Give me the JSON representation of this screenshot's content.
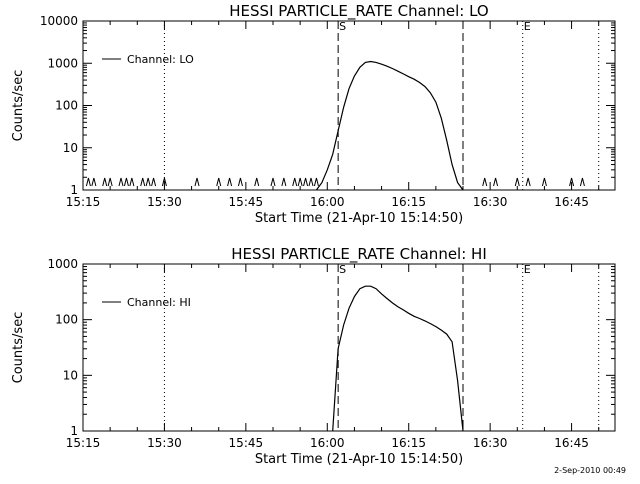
{
  "footer": {
    "timestamp": "2-Sep-2010 00:49"
  },
  "chart_data": [
    {
      "type": "line",
      "title": "HESSI PARTICLE_RATE Channel: LO",
      "xlabel": "Start Time (21-Apr-10 15:14:50)",
      "ylabel": "Counts/sec",
      "yscale": "log",
      "xlim": [
        "15:15",
        "16:53"
      ],
      "ylim": [
        1,
        10000
      ],
      "x_ticks": [
        "15:15",
        "15:30",
        "15:45",
        "16:00",
        "16:15",
        "16:30",
        "16:45"
      ],
      "y_ticks": [
        "1",
        "10",
        "100",
        "1000",
        "10000"
      ],
      "legend": {
        "position": "top-left",
        "entry": "Channel: LO"
      },
      "markers": [
        {
          "label": "S",
          "time": "16:02",
          "style": "dashed"
        },
        {
          "label": "",
          "time": "16:25",
          "style": "dashed"
        },
        {
          "label": "",
          "time": "15:30",
          "style": "dotted"
        },
        {
          "label": "E",
          "time": "16:36",
          "style": "dotted"
        },
        {
          "label": "",
          "time": "16:50",
          "style": "dotted"
        }
      ],
      "spikes": [
        "15:16",
        "15:17",
        "15:19",
        "15:20",
        "15:22",
        "15:23",
        "15:24",
        "15:26",
        "15:27",
        "15:28",
        "15:30",
        "15:36",
        "15:40",
        "15:42",
        "15:44",
        "15:47",
        "15:50",
        "15:52",
        "15:54",
        "15:55",
        "15:56",
        "15:57",
        "15:58",
        "16:29",
        "16:31",
        "16:35",
        "16:37",
        "16:40",
        "16:45",
        "16:47"
      ],
      "series": [
        {
          "x": [
            "15:58",
            "15:59",
            "16:00",
            "16:01",
            "16:02",
            "16:03",
            "16:04",
            "16:05",
            "16:06",
            "16:07",
            "16:08",
            "16:09",
            "16:10",
            "16:11",
            "16:12",
            "16:13",
            "16:14",
            "16:15",
            "16:16",
            "16:17",
            "16:18",
            "16:19",
            "16:20",
            "16:21",
            "16:22",
            "16:23",
            "16:24",
            "16:25"
          ],
          "y": [
            1,
            1.5,
            3,
            7,
            25,
            90,
            250,
            500,
            800,
            1050,
            1100,
            1050,
            950,
            850,
            750,
            650,
            560,
            480,
            420,
            350,
            280,
            200,
            120,
            50,
            15,
            4,
            1.5,
            1
          ]
        }
      ]
    },
    {
      "type": "line",
      "title": "HESSI PARTICLE_RATE Channel: HI",
      "xlabel": "Start Time (21-Apr-10 15:14:50)",
      "ylabel": "Counts/sec",
      "yscale": "log",
      "xlim": [
        "15:15",
        "16:53"
      ],
      "ylim": [
        1,
        1000
      ],
      "x_ticks": [
        "15:15",
        "15:30",
        "15:45",
        "16:00",
        "16:15",
        "16:30",
        "16:45"
      ],
      "y_ticks": [
        "1",
        "10",
        "100",
        "1000"
      ],
      "legend": {
        "position": "top-left",
        "entry": "Channel: HI"
      },
      "markers": [
        {
          "label": "S",
          "time": "16:02",
          "style": "dashed"
        },
        {
          "label": "",
          "time": "16:25",
          "style": "dashed"
        },
        {
          "label": "",
          "time": "15:30",
          "style": "dotted"
        },
        {
          "label": "E",
          "time": "16:36",
          "style": "dotted"
        },
        {
          "label": "",
          "time": "16:50",
          "style": "dotted"
        }
      ],
      "spikes": [],
      "series": [
        {
          "x": [
            "16:01",
            "16:02",
            "16:03",
            "16:04",
            "16:05",
            "16:06",
            "16:07",
            "16:08",
            "16:09",
            "16:10",
            "16:11",
            "16:12",
            "16:13",
            "16:14",
            "16:15",
            "16:16",
            "16:17",
            "16:18",
            "16:19",
            "16:20",
            "16:21",
            "16:22",
            "16:23",
            "16:24",
            "16:25"
          ],
          "y": [
            1,
            30,
            80,
            160,
            260,
            360,
            400,
            400,
            360,
            290,
            240,
            200,
            170,
            150,
            130,
            115,
            105,
            95,
            85,
            75,
            65,
            55,
            40,
            8,
            1
          ]
        }
      ]
    }
  ]
}
